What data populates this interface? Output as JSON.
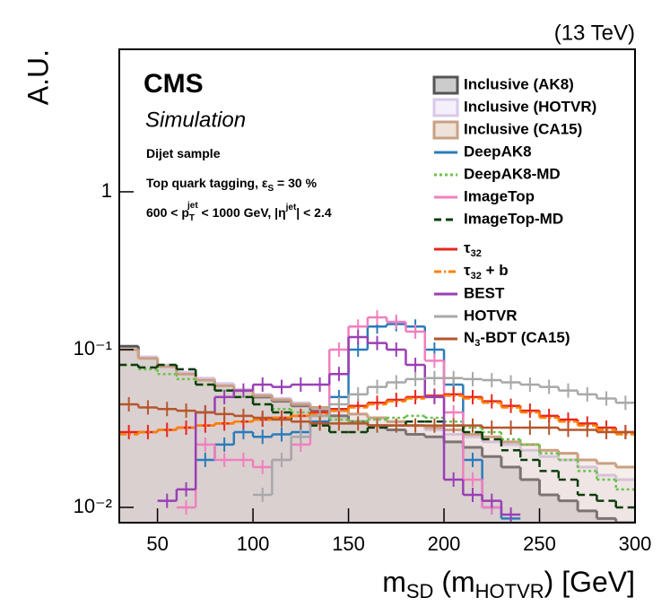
{
  "chart_data": {
    "type": "histogram",
    "energy_label": "(13 TeV)",
    "experiment": "CMS",
    "status": "Simulation",
    "annotations": [
      [
        "Dijet sample"
      ],
      [
        "Top quark tagging, ε",
        "S",
        " = 30 %"
      ],
      [
        "600 < p",
        "T",
        "jet",
        " < 1000 GeV, |η",
        "jet",
        "| < 2.4"
      ]
    ],
    "x_label": [
      "m",
      "SD",
      " (m",
      "HOTVR",
      ") [GeV]"
    ],
    "y_label": "A.U.",
    "log_y": true,
    "bins": [
      30,
      40,
      50,
      60,
      70,
      80,
      90,
      100,
      110,
      120,
      130,
      140,
      150,
      160,
      170,
      180,
      190,
      200,
      210,
      220,
      230,
      240,
      250,
      260,
      270,
      280,
      290,
      300
    ],
    "xlim": [
      30,
      300
    ],
    "xticks": [
      50,
      100,
      150,
      200,
      250,
      300
    ],
    "ylim": [
      0.008,
      8
    ],
    "yticks": [
      {
        "value": 0.01,
        "label": "10⁻²"
      },
      {
        "value": 0.1,
        "label": "10⁻¹"
      },
      {
        "value": 1,
        "label": "1"
      }
    ],
    "series": [
      {
        "name": "Inclusive (AK8)",
        "color": "#555555",
        "fill": true,
        "dash": "solid",
        "values": [
          0.105,
          0.09,
          0.08,
          0.072,
          0.065,
          0.06,
          0.055,
          0.05,
          0.047,
          0.044,
          0.041,
          0.038,
          0.035,
          0.033,
          0.031,
          0.029,
          0.028,
          0.026,
          0.024,
          0.021,
          0.018,
          0.015,
          0.012,
          0.011,
          0.0095,
          0.0085,
          0.008
        ]
      },
      {
        "name": "Inclusive (HOTVR)",
        "color": "#d9c9ea",
        "fill": true,
        "dash": "solid",
        "values": [
          0.1,
          0.09,
          0.08,
          0.072,
          0.066,
          0.061,
          0.056,
          0.052,
          0.049,
          0.046,
          0.043,
          0.041,
          0.039,
          0.037,
          0.035,
          0.033,
          0.031,
          0.029,
          0.028,
          0.026,
          0.025,
          0.023,
          0.021,
          0.02,
          0.018,
          0.016,
          0.015
        ]
      },
      {
        "name": "Inclusive (CA15)",
        "color": "#c9a083",
        "fill": true,
        "dash": "solid",
        "values": [
          0.1,
          0.088,
          0.078,
          0.07,
          0.064,
          0.059,
          0.055,
          0.051,
          0.048,
          0.045,
          0.043,
          0.041,
          0.039,
          0.037,
          0.035,
          0.033,
          0.032,
          0.031,
          0.029,
          0.028,
          0.026,
          0.025,
          0.023,
          0.022,
          0.02,
          0.019,
          0.018
        ]
      },
      {
        "name": "DeepAK8",
        "color": "#2b7bba",
        "dash": "solid",
        "values": [
          null,
          null,
          null,
          null,
          0.02,
          0.025,
          0.03,
          0.028,
          0.029,
          0.03,
          0.035,
          0.05,
          0.1,
          0.14,
          0.145,
          0.14,
          0.1,
          0.06,
          0.02,
          0.01,
          0.0085,
          null,
          null,
          null,
          null,
          null,
          null
        ]
      },
      {
        "name": "DeepAK8-MD",
        "color": "#6ac24a",
        "dash": "dotted",
        "values": [
          0.08,
          0.075,
          0.07,
          0.065,
          0.06,
          0.055,
          0.05,
          0.045,
          0.042,
          0.04,
          0.038,
          0.036,
          0.035,
          0.036,
          0.037,
          0.038,
          0.037,
          0.035,
          0.032,
          0.03,
          0.027,
          0.025,
          0.022,
          0.02,
          0.017,
          0.015,
          0.013
        ]
      },
      {
        "name": "ImageTop",
        "color": "#f27fbf",
        "dash": "solid",
        "values": [
          null,
          null,
          null,
          0.01,
          0.025,
          0.02,
          0.02,
          0.018,
          0.02,
          0.025,
          0.04,
          0.1,
          0.14,
          0.16,
          0.15,
          0.13,
          0.085,
          0.04,
          0.015,
          0.01,
          null,
          null,
          null,
          null,
          null,
          null,
          null
        ]
      },
      {
        "name": "ImageTop-MD",
        "color": "#0b3d0b",
        "dash": "dashed",
        "values": [
          0.08,
          0.077,
          0.08,
          0.075,
          0.06,
          0.055,
          0.05,
          0.045,
          0.04,
          0.035,
          0.033,
          0.03,
          0.03,
          0.032,
          0.033,
          0.035,
          0.035,
          0.033,
          0.03,
          0.027,
          0.023,
          0.02,
          0.017,
          0.015,
          0.012,
          0.011,
          0.01
        ]
      },
      {
        "name": [
          "τ",
          "32"
        ],
        "color": "#e8241e",
        "dash": "solid",
        "values": [
          0.03,
          0.03,
          0.031,
          0.032,
          0.033,
          0.034,
          0.035,
          0.036,
          0.037,
          0.038,
          0.04,
          0.042,
          0.044,
          0.046,
          0.048,
          0.05,
          0.051,
          0.052,
          0.05,
          0.047,
          0.044,
          0.041,
          0.038,
          0.036,
          0.034,
          0.032,
          0.03
        ]
      },
      {
        "name": [
          "τ",
          "32",
          " + b"
        ],
        "color": "#ff8000",
        "dash": "dashdot",
        "values": [
          0.029,
          0.03,
          0.031,
          0.032,
          0.033,
          0.034,
          0.035,
          0.036,
          0.037,
          0.038,
          0.039,
          0.041,
          0.043,
          0.045,
          0.047,
          0.049,
          0.05,
          0.051,
          0.049,
          0.046,
          0.043,
          0.04,
          0.037,
          0.035,
          0.033,
          0.031,
          0.029
        ]
      },
      {
        "name": "BEST",
        "color": "#9a3fb5",
        "dash": "solid",
        "values": [
          null,
          null,
          0.011,
          0.013,
          0.04,
          0.05,
          0.055,
          0.06,
          0.058,
          0.06,
          0.06,
          0.07,
          0.12,
          0.11,
          0.1,
          0.08,
          0.05,
          0.015,
          0.012,
          0.011,
          0.009,
          null,
          null,
          null,
          null,
          null,
          null
        ]
      },
      {
        "name": "HOTVR",
        "color": "#a8a8a8",
        "dash": "solid",
        "values": [
          null,
          null,
          null,
          null,
          null,
          null,
          null,
          0.012,
          0.02,
          0.028,
          0.038,
          0.045,
          0.052,
          0.058,
          0.062,
          0.065,
          0.066,
          0.066,
          0.065,
          0.064,
          0.062,
          0.06,
          0.058,
          0.055,
          0.052,
          0.049,
          0.046
        ]
      },
      {
        "name": [
          "N",
          "3",
          "-BDT (CA15)"
        ],
        "color": "#b5562b",
        "dash": "solid",
        "values": [
          0.045,
          0.043,
          0.042,
          0.041,
          0.04,
          0.039,
          0.038,
          0.037,
          0.036,
          0.035,
          0.034,
          0.034,
          0.034,
          0.033,
          0.033,
          0.033,
          0.033,
          0.033,
          0.033,
          0.032,
          0.032,
          0.032,
          0.032,
          0.031,
          0.031,
          0.03,
          0.03
        ]
      }
    ]
  }
}
